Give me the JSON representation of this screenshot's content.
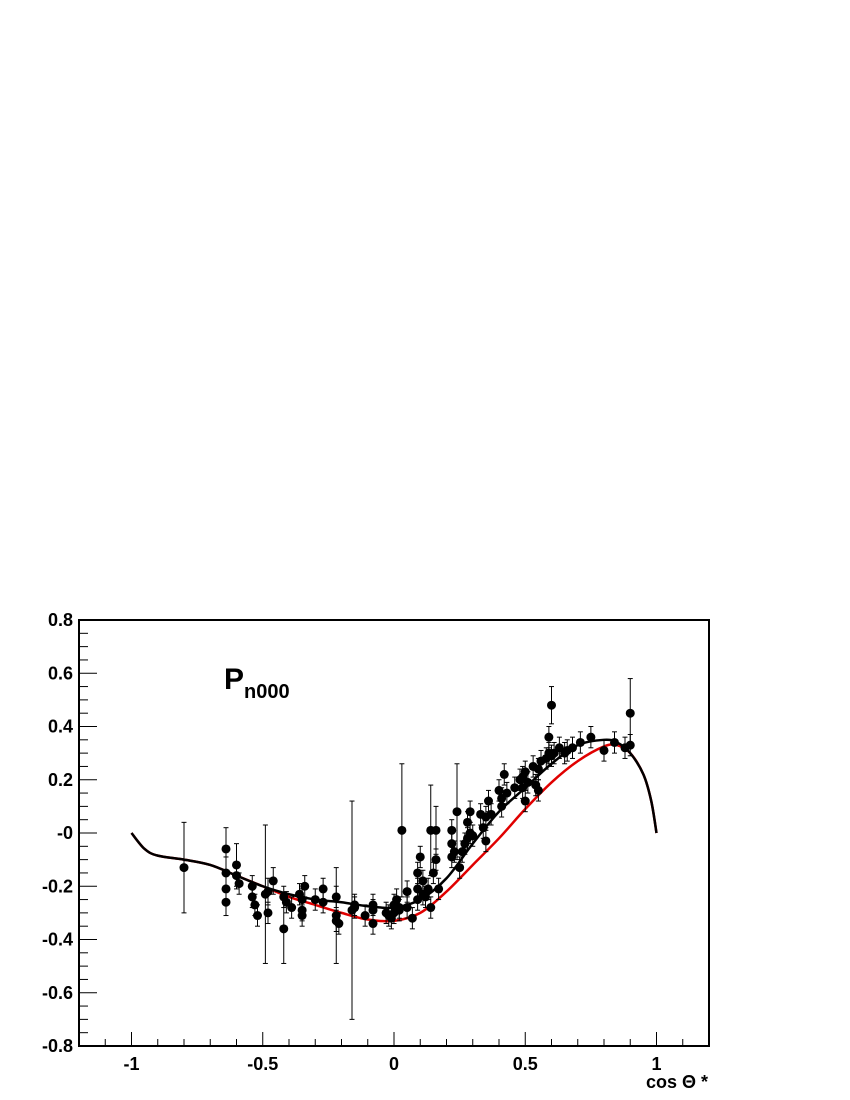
{
  "chart_data": {
    "type": "scatter",
    "title": "",
    "annotation": {
      "main": "P",
      "sub": "n000"
    },
    "xlabel": "cos Θ *",
    "ylabel": "",
    "xlim": [
      -1.2,
      1.2
    ],
    "ylim": [
      -0.8,
      0.8
    ],
    "grid": false,
    "xticks": [
      {
        "value": -1,
        "label": "-1"
      },
      {
        "value": -0.5,
        "label": "-0.5"
      },
      {
        "value": 0,
        "label": "0"
      },
      {
        "value": 0.5,
        "label": "0.5"
      },
      {
        "value": 1,
        "label": "1"
      }
    ],
    "yticks": [
      {
        "value": 0.8,
        "label": "0.8"
      },
      {
        "value": 0.6,
        "label": "0.6"
      },
      {
        "value": 0.4,
        "label": "0.4"
      },
      {
        "value": 0.2,
        "label": "0.2"
      },
      {
        "value": 0,
        "label": "-0"
      },
      {
        "value": -0.2,
        "label": "-0.2"
      },
      {
        "value": -0.4,
        "label": "-0.4"
      },
      {
        "value": -0.6,
        "label": "-0.6"
      },
      {
        "value": -0.8,
        "label": "-0.8"
      }
    ],
    "series": [
      {
        "kind": "points",
        "color": "#000000",
        "points": [
          [
            -0.8,
            -0.13,
            0.17
          ],
          [
            -0.64,
            -0.06,
            0.08
          ],
          [
            -0.64,
            -0.15,
            0.06
          ],
          [
            -0.64,
            -0.21,
            0.05
          ],
          [
            -0.64,
            -0.26,
            0.05
          ],
          [
            -0.6,
            -0.12,
            0.08
          ],
          [
            -0.6,
            -0.16,
            0.05
          ],
          [
            -0.59,
            -0.19,
            0.04
          ],
          [
            -0.54,
            -0.2,
            0.04
          ],
          [
            -0.54,
            -0.24,
            0.04
          ],
          [
            -0.53,
            -0.27,
            0.04
          ],
          [
            -0.52,
            -0.31,
            0.04
          ],
          [
            -0.49,
            -0.23,
            0.26
          ],
          [
            -0.48,
            -0.22,
            0.05
          ],
          [
            -0.48,
            -0.3,
            0.04
          ],
          [
            -0.46,
            -0.18,
            0.05
          ],
          [
            -0.42,
            -0.24,
            0.04
          ],
          [
            -0.42,
            -0.36,
            0.13
          ],
          [
            -0.41,
            -0.26,
            0.04
          ],
          [
            -0.39,
            -0.28,
            0.04
          ],
          [
            -0.36,
            -0.23,
            0.04
          ],
          [
            -0.35,
            -0.25,
            0.04
          ],
          [
            -0.35,
            -0.29,
            0.04
          ],
          [
            -0.35,
            -0.31,
            0.04
          ],
          [
            -0.34,
            -0.2,
            0.04
          ],
          [
            -0.3,
            -0.25,
            0.04
          ],
          [
            -0.27,
            -0.26,
            0.04
          ],
          [
            -0.27,
            -0.21,
            0.04
          ],
          [
            -0.22,
            -0.24,
            0.04
          ],
          [
            -0.22,
            -0.31,
            0.18
          ],
          [
            -0.22,
            -0.33,
            0.04
          ],
          [
            -0.21,
            -0.34,
            0.04
          ],
          [
            -0.16,
            -0.29,
            0.41
          ],
          [
            -0.15,
            -0.27,
            0.04
          ],
          [
            -0.15,
            -0.28,
            0.04
          ],
          [
            -0.11,
            -0.31,
            0.04
          ],
          [
            -0.08,
            -0.27,
            0.04
          ],
          [
            -0.08,
            -0.29,
            0.04
          ],
          [
            -0.08,
            -0.34,
            0.04
          ],
          [
            -0.03,
            -0.3,
            0.04
          ],
          [
            -0.02,
            -0.31,
            0.04
          ],
          [
            -0.01,
            -0.32,
            0.04
          ],
          [
            0.0,
            -0.3,
            0.04
          ],
          [
            0.0,
            -0.27,
            0.04
          ],
          [
            0.01,
            -0.25,
            0.04
          ],
          [
            0.02,
            -0.29,
            0.04
          ],
          [
            0.02,
            -0.28,
            0.04
          ],
          [
            0.03,
            0.01,
            0.25
          ],
          [
            0.05,
            -0.22,
            0.04
          ],
          [
            0.05,
            -0.28,
            0.04
          ],
          [
            0.07,
            -0.32,
            0.04
          ],
          [
            0.09,
            -0.25,
            0.04
          ],
          [
            0.09,
            -0.21,
            0.04
          ],
          [
            0.09,
            -0.15,
            0.04
          ],
          [
            0.1,
            -0.09,
            0.04
          ],
          [
            0.11,
            -0.18,
            0.04
          ],
          [
            0.11,
            -0.23,
            0.04
          ],
          [
            0.12,
            -0.24,
            0.04
          ],
          [
            0.13,
            -0.21,
            0.04
          ],
          [
            0.14,
            0.01,
            0.17
          ],
          [
            0.14,
            -0.28,
            0.04
          ],
          [
            0.15,
            -0.15,
            0.04
          ],
          [
            0.16,
            0.01,
            0.09
          ],
          [
            0.16,
            -0.1,
            0.04
          ],
          [
            0.17,
            -0.21,
            0.04
          ],
          [
            0.22,
            -0.04,
            0.04
          ],
          [
            0.22,
            0.01,
            0.04
          ],
          [
            0.22,
            -0.09,
            0.04
          ],
          [
            0.23,
            -0.07,
            0.04
          ],
          [
            0.24,
            0.08,
            0.18
          ],
          [
            0.25,
            -0.13,
            0.04
          ],
          [
            0.26,
            -0.07,
            0.04
          ],
          [
            0.27,
            -0.04,
            0.04
          ],
          [
            0.28,
            -0.02,
            0.04
          ],
          [
            0.28,
            0.04,
            0.04
          ],
          [
            0.29,
            0.08,
            0.04
          ],
          [
            0.29,
            0.0,
            0.04
          ],
          [
            0.3,
            -0.01,
            0.04
          ],
          [
            0.33,
            0.07,
            0.04
          ],
          [
            0.34,
            0.02,
            0.04
          ],
          [
            0.35,
            0.06,
            0.04
          ],
          [
            0.35,
            -0.03,
            0.04
          ],
          [
            0.36,
            0.12,
            0.04
          ],
          [
            0.37,
            0.07,
            0.04
          ],
          [
            0.4,
            0.16,
            0.04
          ],
          [
            0.41,
            0.13,
            0.04
          ],
          [
            0.41,
            0.1,
            0.04
          ],
          [
            0.42,
            0.22,
            0.04
          ],
          [
            0.43,
            0.15,
            0.04
          ],
          [
            0.46,
            0.17,
            0.04
          ],
          [
            0.48,
            0.2,
            0.04
          ],
          [
            0.49,
            0.21,
            0.04
          ],
          [
            0.49,
            0.17,
            0.04
          ],
          [
            0.5,
            0.12,
            0.04
          ],
          [
            0.5,
            0.23,
            0.04
          ],
          [
            0.51,
            0.19,
            0.04
          ],
          [
            0.53,
            0.25,
            0.04
          ],
          [
            0.54,
            0.18,
            0.04
          ],
          [
            0.55,
            0.16,
            0.04
          ],
          [
            0.55,
            0.24,
            0.04
          ],
          [
            0.56,
            0.27,
            0.04
          ],
          [
            0.58,
            0.28,
            0.04
          ],
          [
            0.59,
            0.3,
            0.04
          ],
          [
            0.59,
            0.36,
            0.04
          ],
          [
            0.6,
            0.48,
            0.07
          ],
          [
            0.6,
            0.29,
            0.04
          ],
          [
            0.61,
            0.3,
            0.04
          ],
          [
            0.63,
            0.32,
            0.04
          ],
          [
            0.65,
            0.3,
            0.04
          ],
          [
            0.66,
            0.31,
            0.04
          ],
          [
            0.68,
            0.32,
            0.04
          ],
          [
            0.71,
            0.34,
            0.04
          ],
          [
            0.75,
            0.36,
            0.04
          ],
          [
            0.8,
            0.31,
            0.04
          ],
          [
            0.84,
            0.34,
            0.04
          ],
          [
            0.88,
            0.32,
            0.04
          ],
          [
            0.9,
            0.45,
            0.13
          ],
          [
            0.9,
            0.33,
            0.04
          ]
        ]
      },
      {
        "kind": "curve",
        "color": "#000000",
        "points": [
          [
            -1.0,
            0.0
          ],
          [
            -0.95,
            -0.06
          ],
          [
            -0.9,
            -0.085
          ],
          [
            -0.8,
            -0.1
          ],
          [
            -0.7,
            -0.12
          ],
          [
            -0.6,
            -0.16
          ],
          [
            -0.5,
            -0.2
          ],
          [
            -0.4,
            -0.23
          ],
          [
            -0.3,
            -0.25
          ],
          [
            -0.2,
            -0.26
          ],
          [
            -0.1,
            -0.275
          ],
          [
            0.0,
            -0.28
          ],
          [
            0.1,
            -0.25
          ],
          [
            0.2,
            -0.17
          ],
          [
            0.3,
            -0.04
          ],
          [
            0.4,
            0.08
          ],
          [
            0.5,
            0.17
          ],
          [
            0.6,
            0.26
          ],
          [
            0.7,
            0.33
          ],
          [
            0.8,
            0.35
          ],
          [
            0.85,
            0.34
          ],
          [
            0.9,
            0.3
          ],
          [
            0.95,
            0.22
          ],
          [
            0.98,
            0.12
          ],
          [
            1.0,
            0.0
          ]
        ]
      },
      {
        "kind": "curve",
        "color": "#e00000",
        "points": [
          [
            -1.0,
            0.0
          ],
          [
            -0.95,
            -0.06
          ],
          [
            -0.9,
            -0.085
          ],
          [
            -0.8,
            -0.1
          ],
          [
            -0.7,
            -0.12
          ],
          [
            -0.6,
            -0.16
          ],
          [
            -0.5,
            -0.2
          ],
          [
            -0.4,
            -0.24
          ],
          [
            -0.3,
            -0.27
          ],
          [
            -0.2,
            -0.3
          ],
          [
            -0.1,
            -0.325
          ],
          [
            0.0,
            -0.33
          ],
          [
            0.1,
            -0.3
          ],
          [
            0.2,
            -0.22
          ],
          [
            0.3,
            -0.12
          ],
          [
            0.4,
            -0.02
          ],
          [
            0.5,
            0.09
          ],
          [
            0.6,
            0.19
          ],
          [
            0.7,
            0.27
          ],
          [
            0.8,
            0.325
          ],
          [
            0.85,
            0.33
          ],
          [
            0.9,
            0.3
          ],
          [
            0.95,
            0.22
          ],
          [
            0.98,
            0.12
          ],
          [
            1.0,
            0.0
          ]
        ]
      }
    ]
  }
}
